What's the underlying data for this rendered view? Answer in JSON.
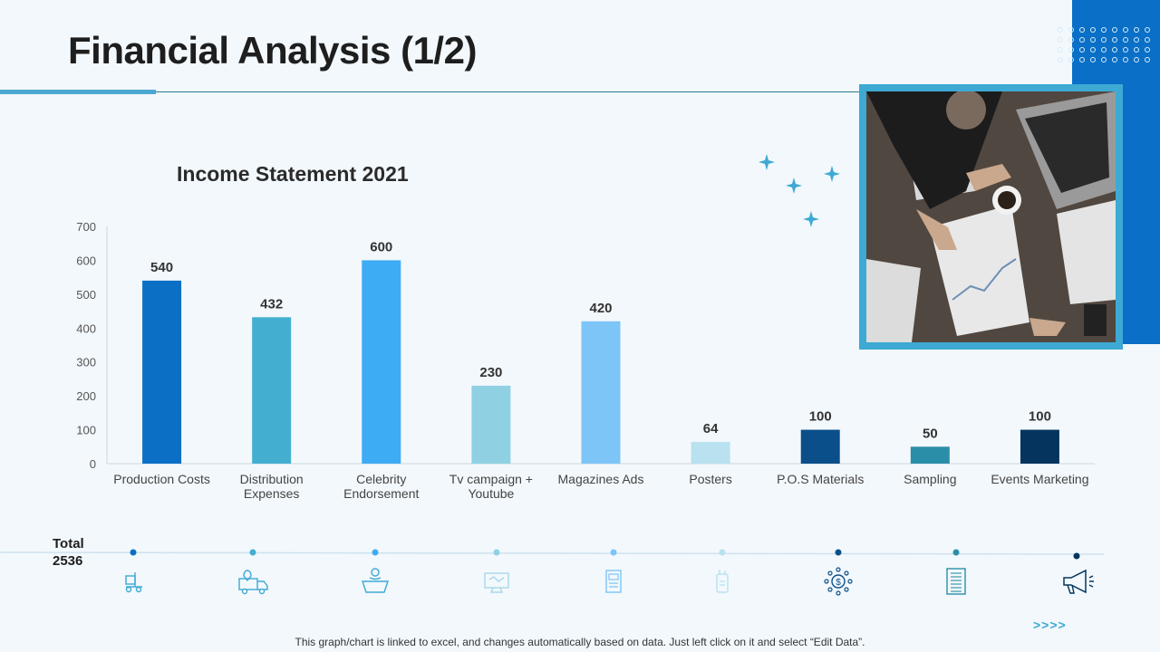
{
  "page": {
    "title": "Financial Analysis (1/2)",
    "footer_note": "This graph/chart is linked to excel, and changes automatically based on data. Just left click on it and select “Edit Data”.",
    "arrows": ">>>>",
    "total_label": "Total",
    "total_value": "2536"
  },
  "colors": {
    "accent": "#4aa8d0",
    "brand_blue": "#0a6fc6",
    "frame": "#3ea9d3"
  },
  "chart_data": {
    "type": "bar",
    "title": "Income Statement 2021",
    "xlabel": "",
    "ylabel": "",
    "ylim": [
      0,
      700
    ],
    "yticks": [
      0,
      100,
      200,
      300,
      400,
      500,
      600,
      700
    ],
    "grid": false,
    "categories": [
      [
        "Production Costs"
      ],
      [
        "Distribution",
        "Expenses"
      ],
      [
        "Celebrity",
        "Endorsement"
      ],
      [
        "Tv campaign +",
        "Youtube"
      ],
      [
        "Magazines Ads"
      ],
      [
        "Posters"
      ],
      [
        "P.O.S Materials"
      ],
      [
        "Sampling"
      ],
      [
        "Events Marketing"
      ]
    ],
    "values": [
      540,
      432,
      600,
      230,
      420,
      64,
      100,
      50,
      100
    ],
    "bar_colors": [
      "#0b6fc6",
      "#44aed0",
      "#3eabf5",
      "#8fd1e3",
      "#7dc4f7",
      "#b9e1ef",
      "#0b4f8a",
      "#2b8ea8",
      "#05355e"
    ]
  },
  "timeline": {
    "icons": [
      "forklift-icon",
      "delivery-truck-icon",
      "endorsement-icon",
      "tv-campaign-icon",
      "magazine-icon",
      "poster-icon",
      "pos-materials-icon",
      "sampling-document-icon",
      "megaphone-icon"
    ],
    "dot_colors": [
      "#0b6fc6",
      "#44aed0",
      "#3eabf5",
      "#8fd1e3",
      "#7dc4f7",
      "#b9e1ef",
      "#0b4f8a",
      "#2b8ea8",
      "#05355e"
    ]
  }
}
